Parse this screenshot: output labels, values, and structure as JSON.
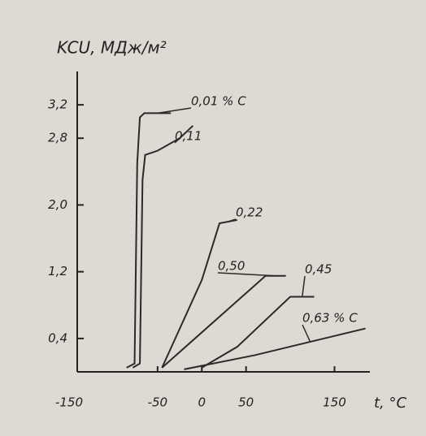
{
  "chart_data": {
    "type": "line",
    "y_label": "KCU, MДж/м²",
    "x_label": "t, °C",
    "xlim": [
      -150,
      190
    ],
    "ylim": [
      0,
      3.6
    ],
    "xticks": [
      -150,
      -50,
      0,
      50,
      150
    ],
    "yticks": [
      {
        "value": 0.4,
        "label": "0,4"
      },
      {
        "value": 1.2,
        "label": "1,2"
      },
      {
        "value": 2.0,
        "label": "2,0"
      },
      {
        "value": 2.8,
        "label": "2,8"
      },
      {
        "value": 3.2,
        "label": "3,2"
      }
    ],
    "series": [
      {
        "name": "0,01 % C",
        "color": "#2a2a2a",
        "x": [
          -85,
          -76,
          -73,
          -70,
          -65,
          -35
        ],
        "values": [
          0.05,
          0.1,
          2.5,
          3.05,
          3.1,
          3.1
        ]
      },
      {
        "name": "0,11",
        "color": "#2a2a2a",
        "x": [
          -78,
          -70,
          -67,
          -64,
          -50,
          -25,
          -10
        ],
        "values": [
          0.05,
          0.1,
          2.3,
          2.6,
          2.65,
          2.8,
          2.95
        ]
      },
      {
        "name": "0,22",
        "color": "#2a2a2a",
        "x": [
          -45,
          0,
          20,
          40
        ],
        "values": [
          0.05,
          1.1,
          1.78,
          1.82
        ]
      },
      {
        "name": "0,50",
        "color": "#2a2a2a",
        "x": [
          -45,
          72,
          95
        ],
        "values": [
          0.05,
          1.15,
          1.15
        ]
      },
      {
        "name": "0,45",
        "color": "#2a2a2a",
        "x": [
          0,
          40,
          100,
          127
        ],
        "values": [
          0.05,
          0.3,
          0.9,
          0.9
        ]
      },
      {
        "name": "0,63 % C",
        "color": "#2a2a2a",
        "x": [
          -20,
          60,
          185
        ],
        "values": [
          0.03,
          0.2,
          0.52
        ]
      }
    ]
  }
}
